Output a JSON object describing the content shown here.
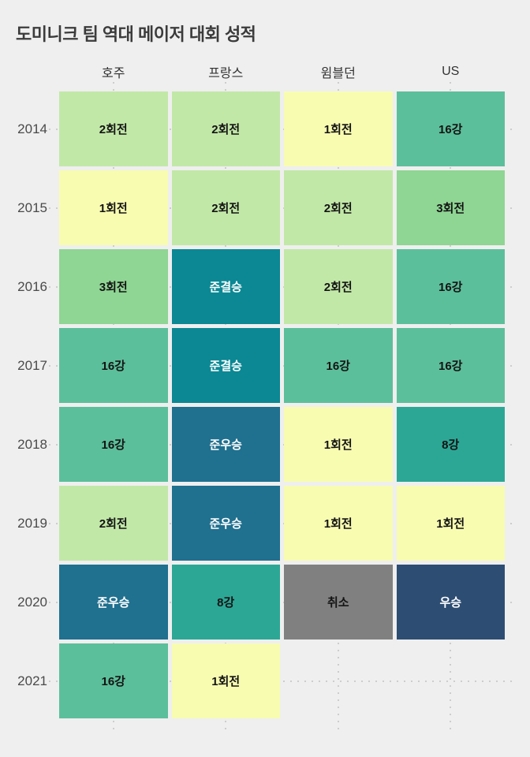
{
  "title": "도미니크 팀 역대 메이저 대회 성적",
  "background": "#efefef",
  "grid_dot_color": "#cdcdcd",
  "chart_data": {
    "type": "heatmap",
    "title": "도미니크 팀 역대 메이저 대회 성적",
    "columns": [
      "호주",
      "프랑스",
      "윔블던",
      "US"
    ],
    "rows": [
      "2014",
      "2015",
      "2016",
      "2017",
      "2018",
      "2019",
      "2020",
      "2021"
    ],
    "values": [
      [
        "2회전",
        "2회전",
        "1회전",
        "16강"
      ],
      [
        "1회전",
        "2회전",
        "2회전",
        "3회전"
      ],
      [
        "3회전",
        "준결승",
        "2회전",
        "16강"
      ],
      [
        "16강",
        "준결승",
        "16강",
        "16강"
      ],
      [
        "16강",
        "준우승",
        "1회전",
        "8강"
      ],
      [
        "2회전",
        "준우승",
        "1회전",
        "1회전"
      ],
      [
        "준우승",
        "8강",
        "취소",
        "우승"
      ],
      [
        "16강",
        "1회전",
        null,
        null
      ]
    ],
    "color_map": {
      "1회전": {
        "bg": "#f8fcb1",
        "text": "#141414"
      },
      "2회전": {
        "bg": "#c2e8a8",
        "text": "#141414"
      },
      "3회전": {
        "bg": "#8fd594",
        "text": "#141414"
      },
      "16강": {
        "bg": "#5cbf9b",
        "text": "#141414"
      },
      "8강": {
        "bg": "#2ca796",
        "text": "#141414"
      },
      "준결승": {
        "bg": "#0b8894",
        "text": "#ffffff"
      },
      "준우승": {
        "bg": "#20708f",
        "text": "#ffffff"
      },
      "우승": {
        "bg": "#2d4d73",
        "text": "#ffffff"
      },
      "취소": {
        "bg": "#808080",
        "text": "#141414"
      }
    },
    "grid": true,
    "legend_position": "none"
  }
}
